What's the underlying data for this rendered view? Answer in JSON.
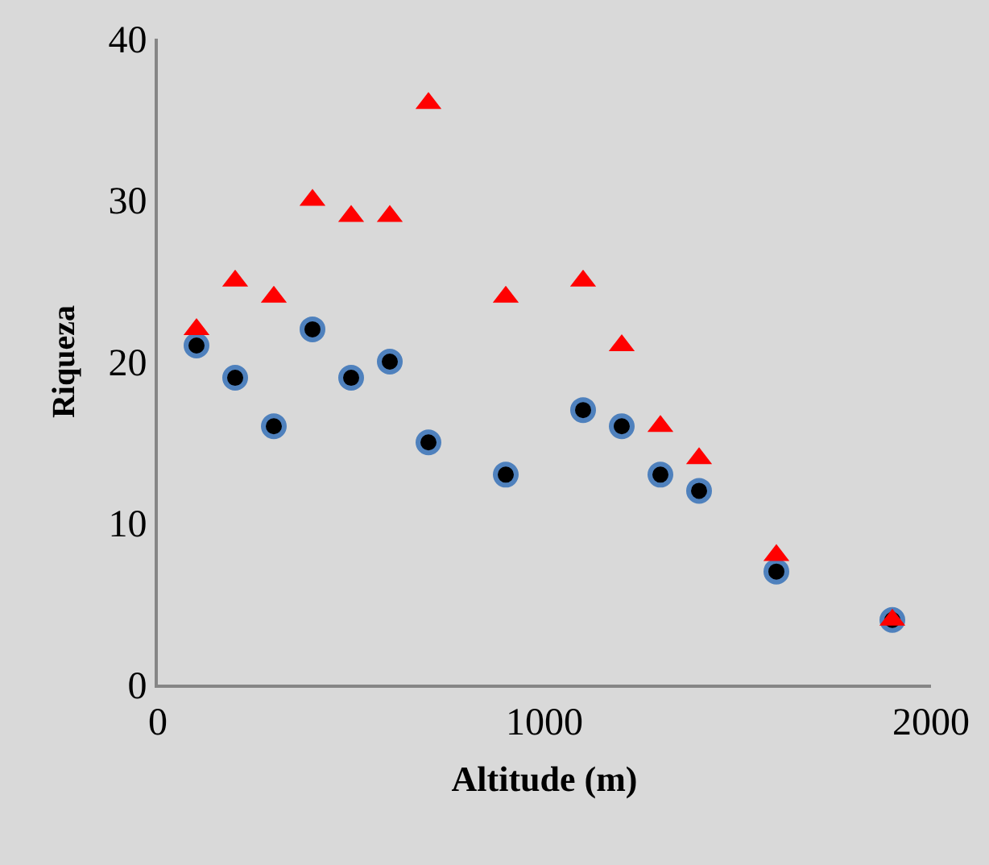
{
  "chart_data": {
    "type": "scatter",
    "xlabel": "Altitude (m)",
    "ylabel": "Riqueza",
    "x": [
      100,
      200,
      300,
      400,
      500,
      600,
      700,
      900,
      1100,
      1200,
      1300,
      1400,
      1600,
      1900
    ],
    "series": [
      {
        "color": "#4f81bd",
        "marker": "circle",
        "values": [
          21,
          19,
          16,
          22,
          19,
          20,
          15,
          13,
          17,
          16,
          13,
          12,
          7,
          4
        ]
      },
      {
        "color": "#ff0000",
        "marker": "triangle",
        "values": [
          22,
          25,
          24,
          30,
          29,
          29,
          36,
          24,
          25,
          21,
          16,
          14,
          8,
          4
        ]
      }
    ],
    "xlim": [
      0,
      2000
    ],
    "xticks": [
      0,
      1000,
      2000
    ],
    "ylim": [
      0,
      40
    ],
    "yticks": [
      0,
      10,
      20,
      30,
      40
    ],
    "grid": false
  }
}
